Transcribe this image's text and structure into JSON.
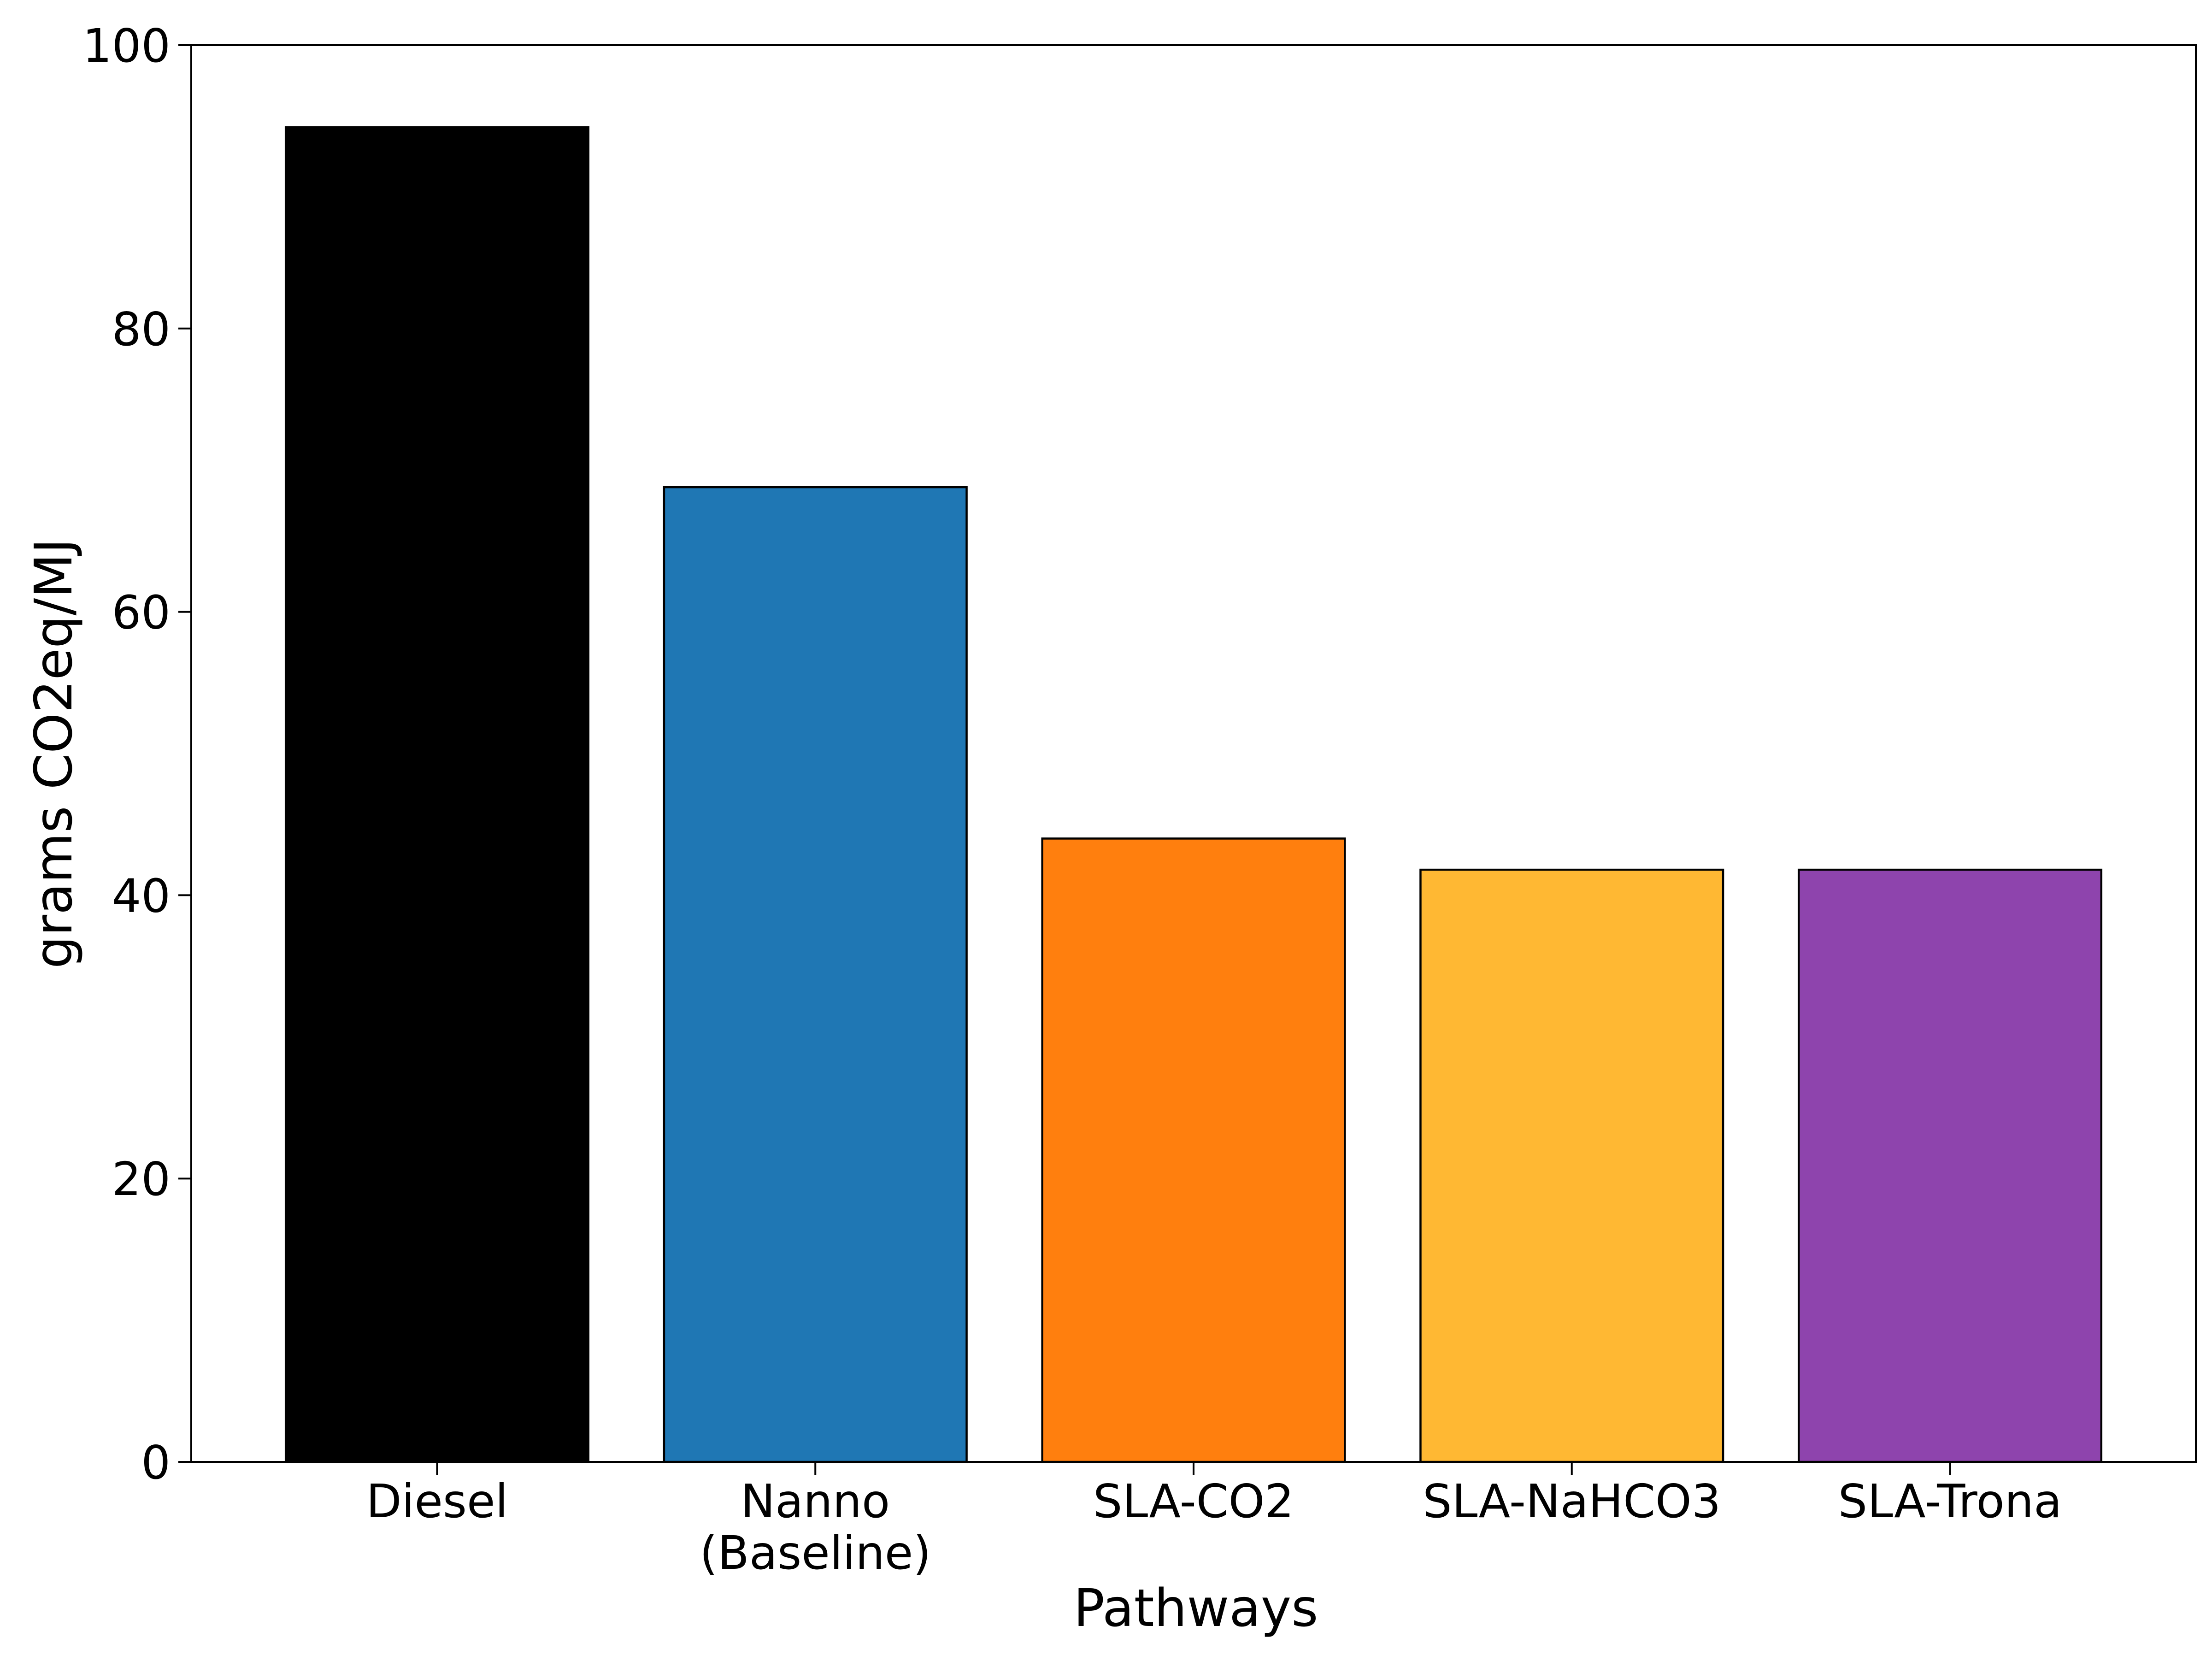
{
  "chart_data": {
    "type": "bar",
    "title": "",
    "xlabel": "Pathways",
    "ylabel": "grams CO2eq/MJ",
    "categories": [
      [
        "Diesel"
      ],
      [
        "Nanno",
        "(Baseline)"
      ],
      [
        "SLA-CO2"
      ],
      [
        "SLA-NaHCO3"
      ],
      [
        "SLA-Trona"
      ]
    ],
    "values": [
      94.2,
      68.8,
      44.0,
      41.8,
      41.8
    ],
    "colors": [
      "#000000",
      "#1f77b4",
      "#ff7f0e",
      "#ffb833",
      "#8e44ad"
    ],
    "ylim": [
      0,
      100
    ],
    "yticks": [
      0,
      20,
      40,
      60,
      80,
      100
    ],
    "ytick_labels": [
      "0",
      "20",
      "40",
      "60",
      "80",
      "100"
    ],
    "grid": false,
    "legend": "none"
  }
}
